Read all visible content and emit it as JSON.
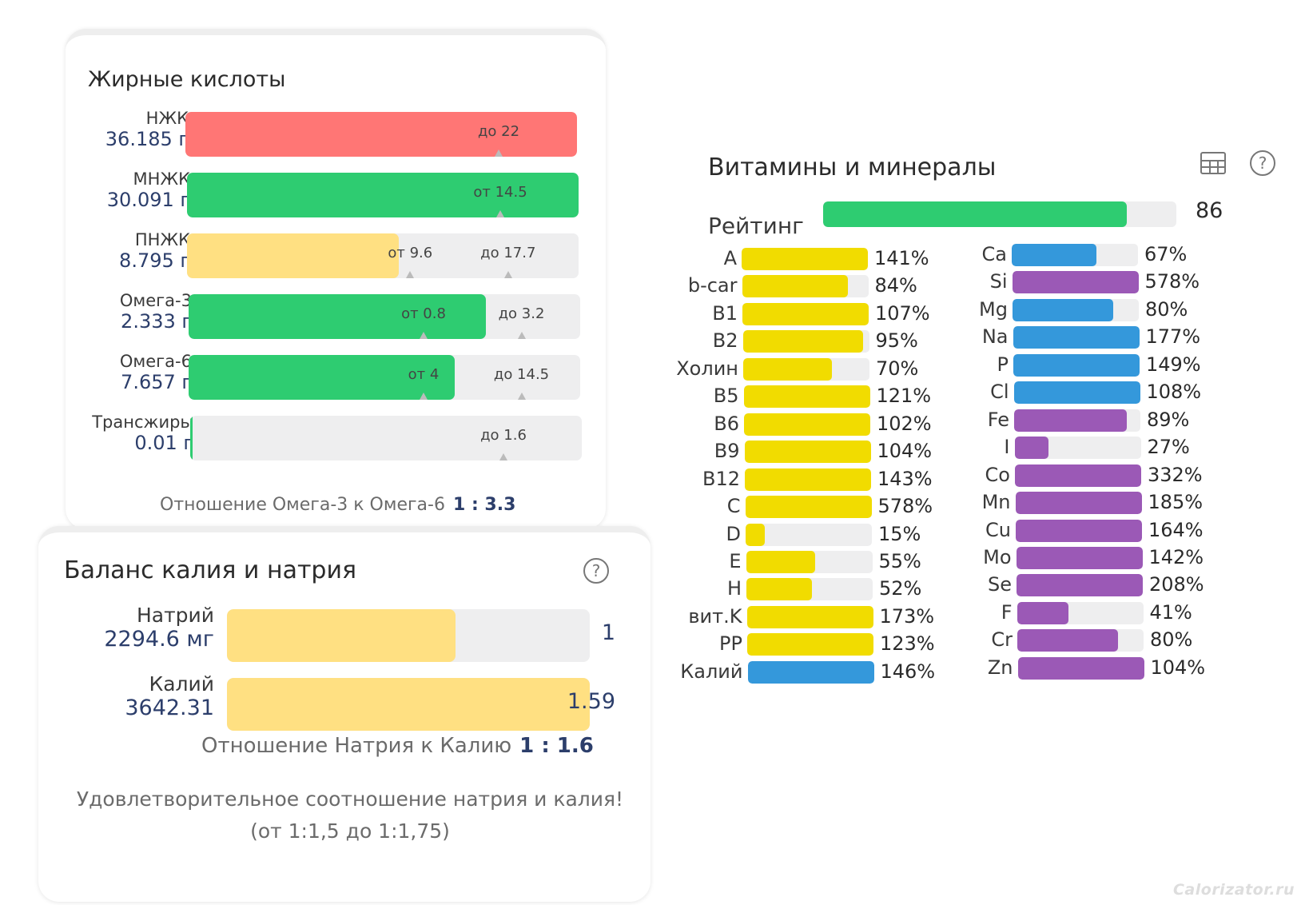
{
  "fatty_acids": {
    "title": "Жирные кислоты",
    "rows": [
      {
        "name": "НЖК",
        "value": "36.185 г",
        "fill_fraction": 1.0,
        "color": "#ff7675",
        "ticks": [
          {
            "label": "до 22",
            "position_fraction": 0.8
          }
        ]
      },
      {
        "name": "МНЖК",
        "value": "30.091 г",
        "fill_fraction": 1.0,
        "color": "#2ecc71",
        "ticks": [
          {
            "label": "от 14.5",
            "position_fraction": 0.8
          }
        ]
      },
      {
        "name": "ПНЖК",
        "value": "8.795 г",
        "fill_fraction": 0.54,
        "color": "#ffe082",
        "ticks": [
          {
            "label": "от 9.6",
            "position_fraction": 0.57
          },
          {
            "label": "до 17.7",
            "position_fraction": 0.82
          }
        ]
      },
      {
        "name": "Омега-3",
        "value": "2.333 г",
        "fill_fraction": 0.76,
        "color": "#2ecc71",
        "ticks": [
          {
            "label": "от 0.8",
            "position_fraction": 0.6
          },
          {
            "label": "до 3.2",
            "position_fraction": 0.85
          }
        ]
      },
      {
        "name": "Омега-6",
        "value": "7.657 г",
        "fill_fraction": 0.68,
        "color": "#2ecc71",
        "ticks": [
          {
            "label": "от 4",
            "position_fraction": 0.6
          },
          {
            "label": "до 14.5",
            "position_fraction": 0.85
          }
        ]
      },
      {
        "name": "Трансжиры",
        "value": "0.01 г",
        "fill_fraction": 0.005,
        "color": "#2ecc71",
        "ticks": [
          {
            "label": "до 1.6",
            "position_fraction": 0.8
          }
        ]
      }
    ],
    "ratio_label": "Отношение Омега-3 к Омега-6",
    "ratio_value": "1 : 3.3"
  },
  "kna_balance": {
    "title": "Баланс калия и натрия",
    "help_icon": "help-icon",
    "rows": [
      {
        "name": "Натрий",
        "value": "2294.6 мг",
        "number": "1",
        "fill_fraction": 0.63,
        "color": "#ffe082"
      },
      {
        "name": "Калий",
        "value": "3642.31",
        "number": "1.59",
        "fill_fraction": 1.0,
        "color": "#ffe082"
      }
    ],
    "ratio_label": "Отношение Натрия к Калию",
    "ratio_value": "1 : 1.6",
    "message_line1": "Удовлетворительное соотношение натрия и калия!",
    "message_line2": "(от 1:1,5 до 1:1,75)"
  },
  "vitamins": {
    "title": "Витамины и минералы",
    "table_icon": "table-icon",
    "help_icon": "help-icon",
    "rating_label": "Рейтинг",
    "rating_value": "86",
    "rating_fraction": 0.86,
    "colors": {
      "vitamin": "#f1dc00",
      "mineral_blue": "#3498db",
      "mineral_purple": "#9b59b6"
    },
    "left": [
      {
        "name": "A",
        "pct": "141%",
        "fill": 1.0,
        "color": "#f1dc00"
      },
      {
        "name": "b-car",
        "pct": "84%",
        "fill": 0.84,
        "color": "#f1dc00"
      },
      {
        "name": "B1",
        "pct": "107%",
        "fill": 1.0,
        "color": "#f1dc00"
      },
      {
        "name": "B2",
        "pct": "95%",
        "fill": 0.95,
        "color": "#f1dc00"
      },
      {
        "name": "Холин",
        "pct": "70%",
        "fill": 0.7,
        "color": "#f1dc00"
      },
      {
        "name": "B5",
        "pct": "121%",
        "fill": 1.0,
        "color": "#f1dc00"
      },
      {
        "name": "B6",
        "pct": "102%",
        "fill": 1.0,
        "color": "#f1dc00"
      },
      {
        "name": "B9",
        "pct": "104%",
        "fill": 1.0,
        "color": "#f1dc00"
      },
      {
        "name": "B12",
        "pct": "143%",
        "fill": 1.0,
        "color": "#f1dc00"
      },
      {
        "name": "C",
        "pct": "578%",
        "fill": 1.0,
        "color": "#f1dc00"
      },
      {
        "name": "D",
        "pct": "15%",
        "fill": 0.15,
        "color": "#f1dc00"
      },
      {
        "name": "E",
        "pct": "55%",
        "fill": 0.55,
        "color": "#f1dc00"
      },
      {
        "name": "H",
        "pct": "52%",
        "fill": 0.52,
        "color": "#f1dc00"
      },
      {
        "name": "вит.K",
        "pct": "173%",
        "fill": 1.0,
        "color": "#f1dc00"
      },
      {
        "name": "PP",
        "pct": "123%",
        "fill": 1.0,
        "color": "#f1dc00"
      },
      {
        "name": "Калий",
        "pct": "146%",
        "fill": 1.0,
        "color": "#3498db"
      }
    ],
    "right": [
      {
        "name": "Ca",
        "pct": "67%",
        "fill": 0.67,
        "color": "#3498db"
      },
      {
        "name": "Si",
        "pct": "578%",
        "fill": 1.0,
        "color": "#9b59b6"
      },
      {
        "name": "Mg",
        "pct": "80%",
        "fill": 0.8,
        "color": "#3498db"
      },
      {
        "name": "Na",
        "pct": "177%",
        "fill": 1.0,
        "color": "#3498db"
      },
      {
        "name": "P",
        "pct": "149%",
        "fill": 1.0,
        "color": "#3498db"
      },
      {
        "name": "Cl",
        "pct": "108%",
        "fill": 1.0,
        "color": "#3498db"
      },
      {
        "name": "Fe",
        "pct": "89%",
        "fill": 0.89,
        "color": "#9b59b6"
      },
      {
        "name": "I",
        "pct": "27%",
        "fill": 0.27,
        "color": "#9b59b6"
      },
      {
        "name": "Co",
        "pct": "332%",
        "fill": 1.0,
        "color": "#9b59b6"
      },
      {
        "name": "Mn",
        "pct": "185%",
        "fill": 1.0,
        "color": "#9b59b6"
      },
      {
        "name": "Cu",
        "pct": "164%",
        "fill": 1.0,
        "color": "#9b59b6"
      },
      {
        "name": "Mo",
        "pct": "142%",
        "fill": 1.0,
        "color": "#9b59b6"
      },
      {
        "name": "Se",
        "pct": "208%",
        "fill": 1.0,
        "color": "#9b59b6"
      },
      {
        "name": "F",
        "pct": "41%",
        "fill": 0.41,
        "color": "#9b59b6"
      },
      {
        "name": "Cr",
        "pct": "80%",
        "fill": 0.8,
        "color": "#9b59b6"
      },
      {
        "name": "Zn",
        "pct": "104%",
        "fill": 1.0,
        "color": "#9b59b6"
      }
    ]
  },
  "watermark": "Calorizator.ru"
}
